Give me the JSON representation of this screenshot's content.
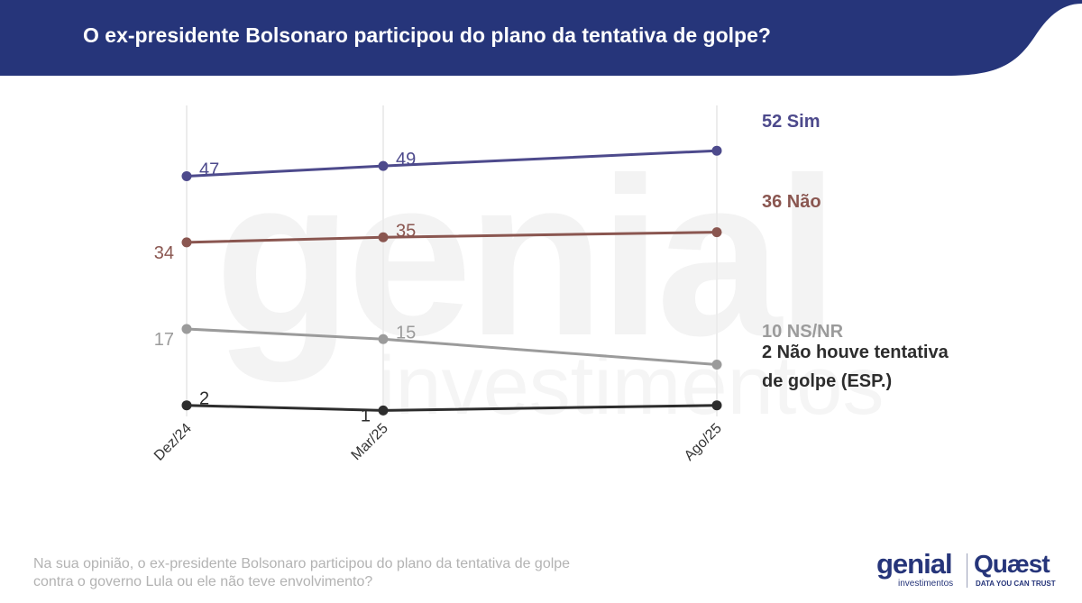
{
  "header": {
    "title": "O ex-presidente Bolsonaro participou do plano da tentativa de golpe?",
    "color": "#26357a"
  },
  "watermark": {
    "main": "genial",
    "sub": "investimentos"
  },
  "footer": {
    "question": "Na sua opinião, o ex-presidente Bolsonaro participou do plano da tentativa de golpe contra o governo Lula ou ele não teve envolvimento?"
  },
  "logos": {
    "genial_name": "genial",
    "genial_sub": "investimentos",
    "quaest_name": "Quæst",
    "quaest_tagline": "DATA YOU CAN TRUST"
  },
  "chart_data": {
    "type": "line",
    "title": "O ex-presidente Bolsonaro participou do plano da tentativa de golpe?",
    "categories": [
      "Dez/24",
      "Mar/25",
      "Ago/25"
    ],
    "ylim": [
      0,
      55
    ],
    "grid": "vertical",
    "xlabel": "",
    "ylabel": "",
    "series": [
      {
        "name": "Sim",
        "values": [
          47,
          49,
          52
        ],
        "color": "#4d4a8c",
        "end_label": [
          "52 Sim"
        ]
      },
      {
        "name": "Não",
        "values": [
          34,
          35,
          36
        ],
        "color": "#8a5650",
        "end_label": [
          "36 Não"
        ]
      },
      {
        "name": "NS/NR",
        "values": [
          17,
          15,
          10
        ],
        "color": "#9b9b9b",
        "end_label": [
          "10 NS/NR"
        ]
      },
      {
        "name": "Não houve tentativa de golpe (ESP.)",
        "values": [
          2,
          1,
          2
        ],
        "color": "#2d2d2d",
        "end_label": [
          "2 Não houve tentativa",
          "de golpe (ESP.)"
        ]
      }
    ]
  }
}
